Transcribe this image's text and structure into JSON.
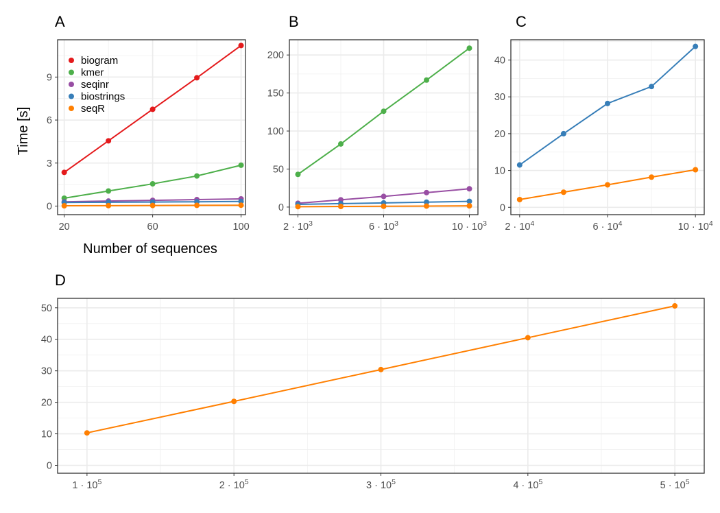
{
  "figure": {
    "y_axis_title": "Time [s]",
    "x_axis_title_A": "Number of sequences"
  },
  "legend": {
    "entries": [
      {
        "name": "biogram",
        "color": "#e41a1c"
      },
      {
        "name": "kmer",
        "color": "#4daf4a"
      },
      {
        "name": "seqinr",
        "color": "#984ea3"
      },
      {
        "name": "biostrings",
        "color": "#377eb8"
      },
      {
        "name": "seqR",
        "color": "#ff7f00"
      }
    ]
  },
  "chart_data": [
    {
      "panel": "A",
      "type": "line",
      "xlabel": "Number of sequences",
      "ylabel": "Time [s]",
      "x": [
        20,
        40,
        60,
        80,
        100
      ],
      "xlim": [
        17,
        102
      ],
      "ylim": [
        -0.6,
        11.6
      ],
      "x_ticks": [
        20,
        60,
        100
      ],
      "x_tick_labels": [
        "20",
        "60",
        "100"
      ],
      "y_ticks": [
        0,
        3,
        6,
        9
      ],
      "y_tick_labels": [
        "0",
        "3",
        "6",
        "9"
      ],
      "grid": true,
      "legend": "top-left inside",
      "series": [
        {
          "name": "biogram",
          "color": "#e41a1c",
          "values": [
            2.35,
            4.55,
            6.75,
            8.95,
            11.2
          ]
        },
        {
          "name": "kmer",
          "color": "#4daf4a",
          "values": [
            0.55,
            1.05,
            1.55,
            2.1,
            2.85
          ]
        },
        {
          "name": "seqinr",
          "color": "#984ea3",
          "values": [
            0.3,
            0.35,
            0.4,
            0.45,
            0.5
          ]
        },
        {
          "name": "biostrings",
          "color": "#377eb8",
          "values": [
            0.25,
            0.27,
            0.28,
            0.3,
            0.32
          ]
        },
        {
          "name": "seqR",
          "color": "#ff7f00",
          "values": [
            0.02,
            0.03,
            0.04,
            0.05,
            0.06
          ]
        }
      ]
    },
    {
      "panel": "B",
      "type": "line",
      "x": [
        2000,
        4000,
        6000,
        8000,
        10000
      ],
      "xlim": [
        1600,
        10400
      ],
      "ylim": [
        -10,
        220
      ],
      "x_ticks": [
        2000,
        6000,
        10000
      ],
      "x_tick_labels": [
        {
          "base": "2 · 10",
          "exp": "3"
        },
        {
          "base": "6 · 10",
          "exp": "3"
        },
        {
          "base": "10 · 10",
          "exp": "3"
        }
      ],
      "y_ticks": [
        0,
        50,
        100,
        150,
        200
      ],
      "y_tick_labels": [
        "0",
        "50",
        "100",
        "150",
        "200"
      ],
      "grid": true,
      "series": [
        {
          "name": "kmer",
          "color": "#4daf4a",
          "values": [
            43,
            83,
            126,
            167,
            209
          ]
        },
        {
          "name": "seqinr",
          "color": "#984ea3",
          "values": [
            5,
            9.5,
            14,
            19,
            24
          ]
        },
        {
          "name": "biostrings",
          "color": "#377eb8",
          "values": [
            3.5,
            4.5,
            5.5,
            6.5,
            7.5
          ]
        },
        {
          "name": "seqR",
          "color": "#ff7f00",
          "values": [
            0.5,
            0.8,
            1.0,
            1.3,
            1.6
          ]
        }
      ]
    },
    {
      "panel": "C",
      "type": "line",
      "x": [
        20000,
        40000,
        60000,
        80000,
        100000
      ],
      "xlim": [
        16000,
        104000
      ],
      "ylim": [
        -2,
        45.5
      ],
      "x_ticks": [
        20000,
        60000,
        100000
      ],
      "x_tick_labels": [
        {
          "base": "2 · 10",
          "exp": "4"
        },
        {
          "base": "6 · 10",
          "exp": "4"
        },
        {
          "base": "10 · 10",
          "exp": "4"
        }
      ],
      "y_ticks": [
        0,
        10,
        20,
        30,
        40
      ],
      "y_tick_labels": [
        "0",
        "10",
        "20",
        "30",
        "40"
      ],
      "grid": true,
      "series": [
        {
          "name": "biostrings",
          "color": "#377eb8",
          "values": [
            11.5,
            20,
            28.2,
            32.8,
            43.7
          ]
        },
        {
          "name": "seqR",
          "color": "#ff7f00",
          "values": [
            2.1,
            4.1,
            6.1,
            8.2,
            10.2
          ]
        }
      ]
    },
    {
      "panel": "D",
      "type": "line",
      "x": [
        100000,
        200000,
        300000,
        400000,
        500000
      ],
      "xlim": [
        80000,
        520000
      ],
      "ylim": [
        -2.5,
        53
      ],
      "x_ticks": [
        100000,
        200000,
        300000,
        400000,
        500000
      ],
      "x_tick_labels": [
        {
          "base": "1 · 10",
          "exp": "5"
        },
        {
          "base": "2 · 10",
          "exp": "5"
        },
        {
          "base": "3 · 10",
          "exp": "5"
        },
        {
          "base": "4 · 10",
          "exp": "5"
        },
        {
          "base": "5 · 10",
          "exp": "5"
        }
      ],
      "y_ticks": [
        0,
        10,
        20,
        30,
        40,
        50
      ],
      "y_tick_labels": [
        "0",
        "10",
        "20",
        "30",
        "40",
        "50"
      ],
      "grid": true,
      "series": [
        {
          "name": "seqR",
          "color": "#ff7f00",
          "values": [
            10.3,
            20.3,
            30.4,
            40.5,
            50.6
          ]
        }
      ]
    }
  ]
}
